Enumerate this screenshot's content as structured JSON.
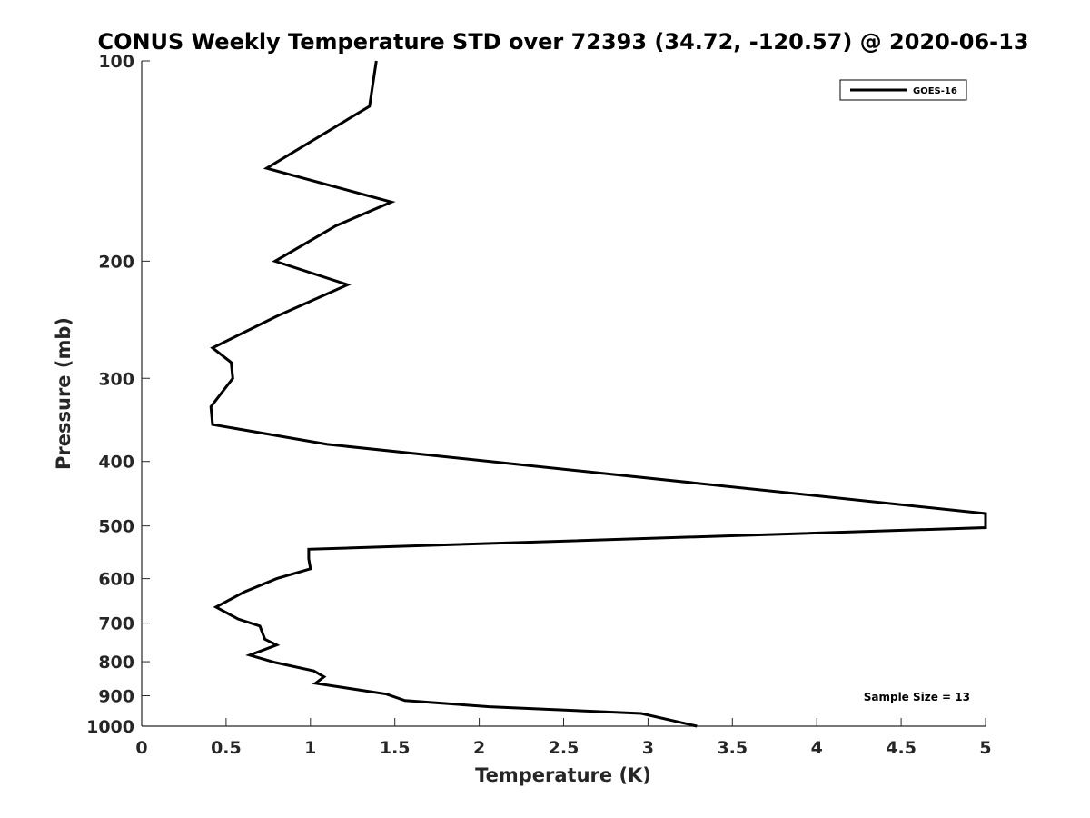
{
  "chart_data": {
    "type": "line",
    "title": "CONUS Weekly Temperature STD over 72393 (34.72, -120.57) @ 2020-06-13",
    "xlabel": "Temperature (K)",
    "ylabel": "Pressure (mb)",
    "xlim": [
      0,
      5
    ],
    "ylim": [
      100,
      1000
    ],
    "y_scale": "log",
    "y_reversed": true,
    "grid": false,
    "legend_position": "top-right",
    "x_ticks": [
      0,
      0.5,
      1,
      1.5,
      2,
      2.5,
      3,
      3.5,
      4,
      4.5,
      5
    ],
    "x_tick_labels": [
      "0",
      "0.5",
      "1",
      "1.5",
      "2",
      "2.5",
      "3",
      "3.5",
      "4",
      "4.5",
      "5"
    ],
    "y_ticks": [
      100,
      200,
      300,
      400,
      500,
      600,
      700,
      800,
      900,
      1000
    ],
    "y_tick_labels": [
      "100",
      "200",
      "300",
      "400",
      "500",
      "600",
      "700",
      "800",
      "900",
      "1000"
    ],
    "annotation": "Sample Size = 13",
    "series": [
      {
        "name": "GOES-16",
        "color": "#000000",
        "points": [
          {
            "x": 1.39,
            "y": 100
          },
          {
            "x": 1.35,
            "y": 117
          },
          {
            "x": 0.74,
            "y": 145
          },
          {
            "x": 1.48,
            "y": 163
          },
          {
            "x": 1.15,
            "y": 177
          },
          {
            "x": 0.79,
            "y": 200
          },
          {
            "x": 1.22,
            "y": 217
          },
          {
            "x": 0.8,
            "y": 242
          },
          {
            "x": 0.42,
            "y": 270
          },
          {
            "x": 0.53,
            "y": 284
          },
          {
            "x": 0.54,
            "y": 300
          },
          {
            "x": 0.41,
            "y": 331
          },
          {
            "x": 0.42,
            "y": 352
          },
          {
            "x": 1.1,
            "y": 377
          },
          {
            "x": 5.0,
            "y": 479
          },
          {
            "x": 5.0,
            "y": 503
          },
          {
            "x": 0.99,
            "y": 542
          },
          {
            "x": 0.99,
            "y": 560
          },
          {
            "x": 1.0,
            "y": 580
          },
          {
            "x": 0.8,
            "y": 600
          },
          {
            "x": 0.61,
            "y": 628
          },
          {
            "x": 0.44,
            "y": 662
          },
          {
            "x": 0.57,
            "y": 690
          },
          {
            "x": 0.7,
            "y": 707
          },
          {
            "x": 0.73,
            "y": 740
          },
          {
            "x": 0.8,
            "y": 755
          },
          {
            "x": 0.64,
            "y": 782
          },
          {
            "x": 0.79,
            "y": 802
          },
          {
            "x": 1.02,
            "y": 826
          },
          {
            "x": 1.08,
            "y": 843
          },
          {
            "x": 1.03,
            "y": 862
          },
          {
            "x": 1.45,
            "y": 895
          },
          {
            "x": 1.56,
            "y": 915
          },
          {
            "x": 2.06,
            "y": 935
          },
          {
            "x": 2.96,
            "y": 957
          },
          {
            "x": 3.29,
            "y": 1000
          }
        ]
      }
    ]
  }
}
